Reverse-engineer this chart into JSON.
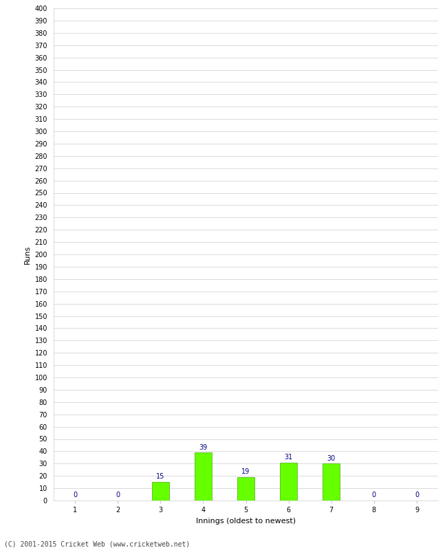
{
  "xlabel": "Innings (oldest to newest)",
  "ylabel": "Runs",
  "categories": [
    "1",
    "2",
    "3",
    "4",
    "5",
    "6",
    "7",
    "8",
    "9"
  ],
  "values": [
    0,
    0,
    15,
    39,
    19,
    31,
    30,
    0,
    0
  ],
  "bar_color": "#66ff00",
  "bar_edge_color": "#44aa00",
  "label_color": "#000080",
  "ylim": [
    0,
    400
  ],
  "ytick_step": 10,
  "background_color": "#ffffff",
  "grid_color": "#cccccc",
  "footer": "(C) 2001-2015 Cricket Web (www.cricketweb.net)",
  "bar_width": 0.4,
  "ylabel_fontsize": 8,
  "xlabel_fontsize": 8,
  "tick_fontsize": 7,
  "label_fontsize": 7
}
